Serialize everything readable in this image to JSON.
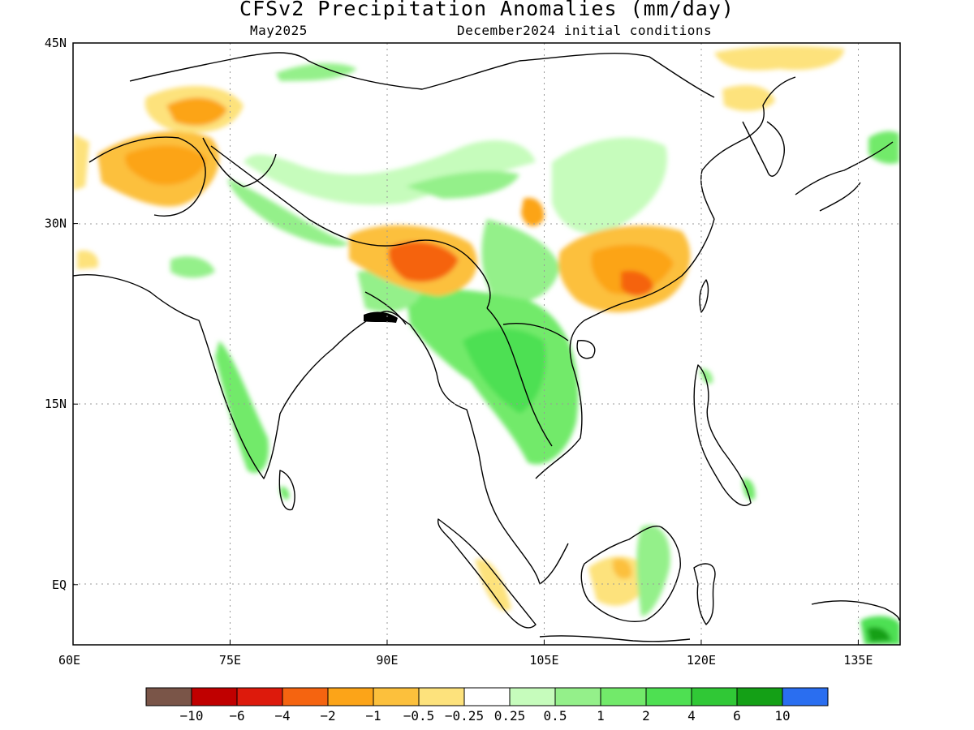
{
  "title": "CFSv2 Precipitation Anomalies (mm/day)",
  "subtitle_left": "May2025",
  "subtitle_right": "December2024 initial conditions",
  "axes": {
    "x_ticks": [
      {
        "value": 60,
        "label": "60E"
      },
      {
        "value": 75,
        "label": "75E"
      },
      {
        "value": 90,
        "label": "90E"
      },
      {
        "value": 105,
        "label": "105E"
      },
      {
        "value": 120,
        "label": "120E"
      },
      {
        "value": 135,
        "label": "135E"
      }
    ],
    "y_ticks": [
      {
        "value": 45,
        "label": "45N"
      },
      {
        "value": 30,
        "label": "30N"
      },
      {
        "value": 15,
        "label": "15N"
      },
      {
        "value": 0,
        "label": "EQ"
      }
    ],
    "lon_range": [
      60,
      139
    ],
    "lat_range": [
      -5,
      45
    ],
    "grid": "dotted"
  },
  "colorbar": {
    "colors": [
      "#7a5548",
      "#c00000",
      "#dd1a0c",
      "#f56410",
      "#fca418",
      "#fcc03c",
      "#fde27c",
      "#ffffff",
      "#c6fcbc",
      "#94f08a",
      "#72ea6a",
      "#4ee052",
      "#30c836",
      "#14a016",
      "#2a6ef0"
    ],
    "labels": [
      "−10",
      "−6",
      "−4",
      "−2",
      "−1",
      "−0.5",
      "−0.25",
      "0.25",
      "0.5",
      "1",
      "2",
      "4",
      "6",
      "10"
    ]
  },
  "chart_data": {
    "type": "heatmap",
    "title": "CFSv2 Precipitation Anomalies (mm/day)",
    "period": "May2025",
    "initial_conditions": "December2024 initial conditions",
    "units": "mm/day",
    "lon_range": [
      60,
      139
    ],
    "lat_range": [
      -5,
      45
    ],
    "levels": [
      -10,
      -6,
      -4,
      -2,
      -1,
      -0.5,
      -0.25,
      0.25,
      0.5,
      1,
      2,
      4,
      6,
      10
    ],
    "regions": [
      {
        "lon": [
          66,
          73
        ],
        "lat": [
          34,
          38
        ],
        "anomaly": -1
      },
      {
        "lon": [
          67,
          72
        ],
        "lat": [
          35,
          37
        ],
        "anomaly": -2
      },
      {
        "lon": [
          67,
          74
        ],
        "lat": [
          37,
          41
        ],
        "anomaly": -0.5
      },
      {
        "lon": [
          87,
          97
        ],
        "lat": [
          26,
          30
        ],
        "anomaly": -1
      },
      {
        "lon": [
          91,
          95
        ],
        "lat": [
          27,
          29
        ],
        "anomaly": -4
      },
      {
        "lon": [
          107,
          118
        ],
        "lat": [
          24,
          30
        ],
        "anomaly": -1
      },
      {
        "lon": [
          112,
          116
        ],
        "lat": [
          25,
          27
        ],
        "anomaly": -2
      },
      {
        "lon": [
          106,
          108
        ],
        "lat": [
          29,
          32
        ],
        "anomaly": -1
      },
      {
        "lon": [
          110,
          116
        ],
        "lat": [
          -1,
          3
        ],
        "anomaly": -0.5
      },
      {
        "lon": [
          126,
          131
        ],
        "lat": [
          42,
          45
        ],
        "anomaly": -0.5
      },
      {
        "lon": [
          100,
          108
        ],
        "lat": [
          12,
          23
        ],
        "anomaly": 1
      },
      {
        "lon": [
          97,
          104
        ],
        "lat": [
          17,
          22
        ],
        "anomaly": 2
      },
      {
        "lon": [
          92,
          100
        ],
        "lat": [
          18,
          25
        ],
        "anomaly": 1
      },
      {
        "lon": [
          73,
          79
        ],
        "lat": [
          10,
          16
        ],
        "anomaly": 1
      },
      {
        "lon": [
          92,
          105
        ],
        "lat": [
          31,
          35
        ],
        "anomaly": 0.5
      },
      {
        "lon": [
          105,
          112
        ],
        "lat": [
          30,
          37
        ],
        "anomaly": 0.5
      },
      {
        "lon": [
          102,
          108
        ],
        "lat": [
          26,
          30
        ],
        "anomaly": 1
      },
      {
        "lon": [
          135,
          139
        ],
        "lat": [
          -5,
          -3
        ],
        "anomaly": 4
      }
    ]
  }
}
